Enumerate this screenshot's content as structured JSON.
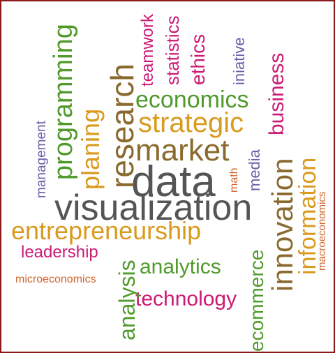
{
  "colors": {
    "border": "#8b1a1a",
    "background": "#ffffff",
    "gray": "#555555",
    "brown": "#8a6a2e",
    "green": "#4f9a2a",
    "gold": "#d99a1e",
    "magenta": "#cc1a74",
    "purple": "#6b5ea8",
    "orange": "#d2642a"
  },
  "words": {
    "data": "data",
    "visualization": "visualization",
    "market": "market",
    "research": "research",
    "innovation": "innovation",
    "entrepreneurship": "entrepreneurship",
    "economics": "economics",
    "strategic": "strategic",
    "programming": "programming",
    "planing": "planing",
    "information": "information",
    "analytics": "analytics",
    "technology": "technology",
    "ecommerce": "ecommerce",
    "analysis": "analysis",
    "business": "business",
    "leadership": "leadership",
    "teamwork": "teamwork",
    "statistics": "statistics",
    "ethics": "ethics",
    "iniative": "iniative",
    "management": "management",
    "media": "media",
    "math": "math",
    "macroeconomics": "macroeconomics",
    "microeconomics": "microeconomics"
  }
}
